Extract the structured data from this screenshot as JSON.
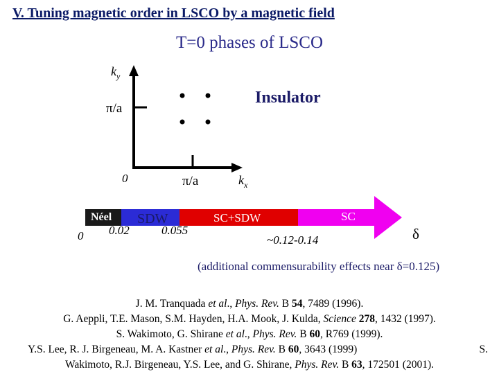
{
  "title": "V. Tuning magnetic order in LSCO by a magnetic field",
  "subtitle": "T=0 phases of LSCO",
  "diagram": {
    "ky_label": "k",
    "ky_sub": "y",
    "kx_label": "k",
    "kx_sub": "x",
    "pi_a_y": "π/a",
    "pi_a_x": "π/a",
    "origin": "0",
    "insulator_label": "Insulator"
  },
  "phase_bar": {
    "segments": [
      {
        "label": "Néel",
        "color": "#1a1a1a",
        "text_color": "#ffffff"
      },
      {
        "label": "SDW",
        "color": "#2b2bd6",
        "text_color": "#1a1a66"
      },
      {
        "label": "SC+SDW",
        "color": "#e00000",
        "text_color": "#ffffff"
      },
      {
        "label": "SC",
        "color": "#f000f0",
        "text_color": "#ffffff"
      }
    ],
    "ticks": [
      "0",
      "0.02",
      "0.055",
      "~0.12-0.14"
    ],
    "delta_label": "δ"
  },
  "note": "(additional commensurability effects near δ=0.125)",
  "references": [
    {
      "authors": "J. M. Tranquada ",
      "etal": "et al",
      "rest1": "., ",
      "journal": "Phys. Rev.",
      "rest2": " B ",
      "vol": "54",
      "rest3": ", 7489 (1996)."
    },
    {
      "authors": "G. Aeppli, T.E. Mason, S.M. Hayden, H.A. Mook, J. Kulda, ",
      "journal": "Science",
      "vol": "278",
      "rest3": ", 1432 (1997)."
    },
    {
      "authors": "S. Wakimoto, G. Shirane ",
      "etal": "et al",
      "rest1": "., ",
      "journal": "Phys. Rev.",
      "rest2": " B ",
      "vol": "60",
      "rest3": ", R769 (1999)."
    },
    {
      "authors": "Y.S. Lee, R. J. Birgeneau, M. A. Kastner ",
      "etal": "et al",
      "rest1": "., ",
      "journal": "Phys. Rev.",
      "rest2": " B ",
      "vol": "60",
      "rest3": ", 3643 (1999)",
      "tail": "S."
    },
    {
      "authors": "Wakimoto, R.J. Birgeneau, Y.S. Lee, and G. Shirane, ",
      "journal": "Phys. Rev.",
      "rest2": " B ",
      "vol": "63",
      "rest3": ", 172501 (2001)."
    }
  ]
}
